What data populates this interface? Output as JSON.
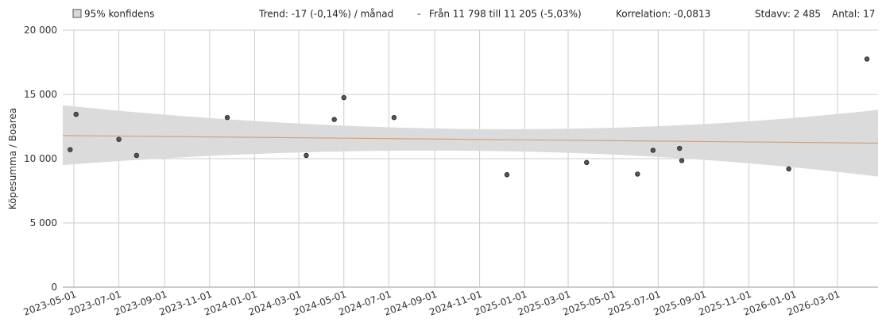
{
  "legend": {
    "label": "95% konfidens",
    "swatch_color": "#d9d9d9"
  },
  "stats": {
    "trend": "Trend: -17 (-0,14%) / månad",
    "separator": "-",
    "range": "Från 11 798 till 11 205 (-5,03%)",
    "correlation": "Korrelation: -0,0813",
    "stdev": "Stdavv: 2 485",
    "count": "Antal: 17"
  },
  "chart_data": {
    "type": "scatter",
    "ylabel": "Köpesumma / Boarea",
    "ylim": [
      0,
      20000
    ],
    "xlim": [
      "2023-04-16",
      "2026-04-25"
    ],
    "y_ticks": [
      0,
      5000,
      10000,
      15000,
      20000
    ],
    "y_tick_labels": [
      "0",
      "5 000",
      "10 000",
      "15 000",
      "20 000"
    ],
    "x_ticks": [
      "2023-05-01",
      "2023-07-01",
      "2023-09-01",
      "2023-11-01",
      "2024-01-01",
      "2024-03-01",
      "2024-05-01",
      "2024-07-01",
      "2024-09-01",
      "2024-11-01",
      "2025-01-01",
      "2025-03-01",
      "2025-05-01",
      "2025-07-01",
      "2025-09-01",
      "2025-11-01",
      "2026-01-01",
      "2026-03-01"
    ],
    "grid": true,
    "points": [
      {
        "x": "2023-04-26",
        "y": 10700
      },
      {
        "x": "2023-05-04",
        "y": 13450
      },
      {
        "x": "2023-07-01",
        "y": 11500
      },
      {
        "x": "2023-07-25",
        "y": 10250
      },
      {
        "x": "2023-11-25",
        "y": 13200
      },
      {
        "x": "2024-03-11",
        "y": 10250
      },
      {
        "x": "2024-04-18",
        "y": 13050
      },
      {
        "x": "2024-05-01",
        "y": 14750
      },
      {
        "x": "2024-07-08",
        "y": 13200
      },
      {
        "x": "2024-12-08",
        "y": 8750
      },
      {
        "x": "2025-03-26",
        "y": 9700
      },
      {
        "x": "2025-06-03",
        "y": 8800
      },
      {
        "x": "2025-06-24",
        "y": 10650
      },
      {
        "x": "2025-07-30",
        "y": 10800
      },
      {
        "x": "2025-08-02",
        "y": 9850
      },
      {
        "x": "2025-12-25",
        "y": 9200
      },
      {
        "x": "2026-04-10",
        "y": 17750
      }
    ],
    "trend_line": {
      "start": 11798,
      "end": 11205,
      "color": "#d4a27a"
    },
    "confidence_band": {
      "upper": [
        {
          "x": "2023-04-16",
          "y": 14150
        },
        {
          "x": "2024-11-15",
          "y": 12300
        },
        {
          "x": "2026-04-25",
          "y": 13800
        }
      ],
      "lower": [
        {
          "x": "2023-04-16",
          "y": 9500
        },
        {
          "x": "2024-11-15",
          "y": 10600
        },
        {
          "x": "2026-04-25",
          "y": 8600
        }
      ],
      "color": "#d9d9d9"
    },
    "point_color": "#555555"
  }
}
